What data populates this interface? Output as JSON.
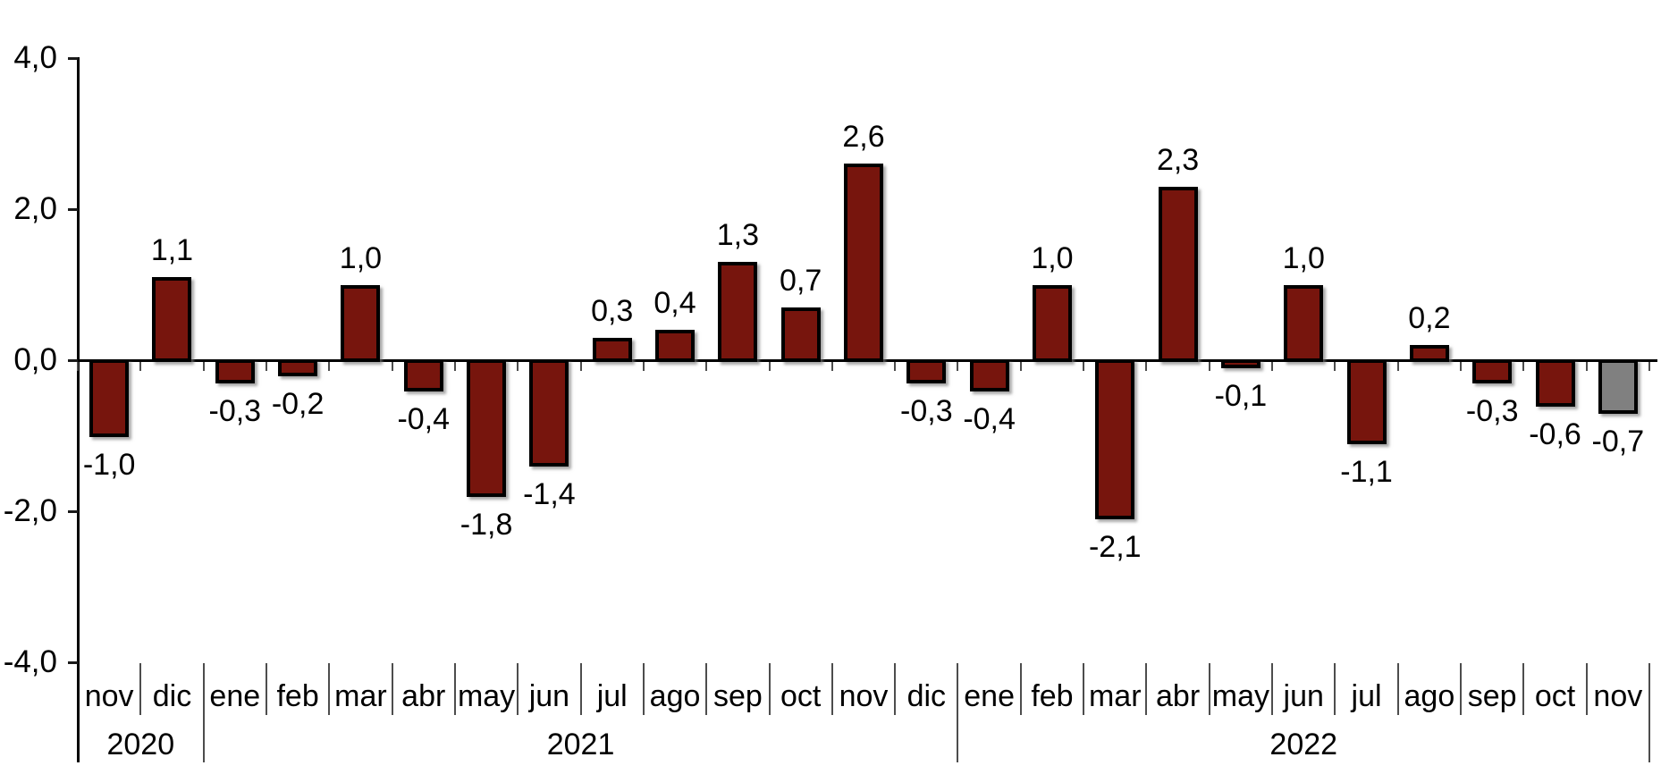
{
  "chart_data": {
    "type": "bar",
    "title": "",
    "background": "#ffffff",
    "grid": false,
    "legend": null,
    "ylim": [
      -4.0,
      4.0
    ],
    "y_ticks": [
      {
        "value": 4.0,
        "label": "4,0"
      },
      {
        "value": 2.0,
        "label": "2,0"
      },
      {
        "value": 0.0,
        "label": "0,0"
      },
      {
        "value": -2.0,
        "label": "-2,0"
      },
      {
        "value": -4.0,
        "label": "-4,0"
      }
    ],
    "colors": {
      "bar_fill": "#77150d",
      "bar_fill_highlight": "#808080",
      "bar_border": "#000000",
      "axis": "#000000",
      "separator": "#4d4d4d",
      "text": "#000000"
    },
    "year_groups": [
      {
        "label": "2020",
        "start": 0,
        "count": 2
      },
      {
        "label": "2021",
        "start": 2,
        "count": 12
      },
      {
        "label": "2022",
        "start": 14,
        "count": 11
      }
    ],
    "points": [
      {
        "month": "nov",
        "year": "2020",
        "value": -1.0,
        "label": "-1,0",
        "highlighted": false
      },
      {
        "month": "dic",
        "year": "2020",
        "value": 1.1,
        "label": "1,1",
        "highlighted": false
      },
      {
        "month": "ene",
        "year": "2021",
        "value": -0.3,
        "label": "-0,3",
        "highlighted": false
      },
      {
        "month": "feb",
        "year": "2021",
        "value": -0.2,
        "label": "-0,2",
        "highlighted": false
      },
      {
        "month": "mar",
        "year": "2021",
        "value": 1.0,
        "label": "1,0",
        "highlighted": false
      },
      {
        "month": "abr",
        "year": "2021",
        "value": -0.4,
        "label": "-0,4",
        "highlighted": false
      },
      {
        "month": "may",
        "year": "2021",
        "value": -1.8,
        "label": "-1,8",
        "highlighted": false
      },
      {
        "month": "jun",
        "year": "2021",
        "value": -1.4,
        "label": "-1,4",
        "highlighted": false
      },
      {
        "month": "jul",
        "year": "2021",
        "value": 0.3,
        "label": "0,3",
        "highlighted": false
      },
      {
        "month": "ago",
        "year": "2021",
        "value": 0.4,
        "label": "0,4",
        "highlighted": false
      },
      {
        "month": "sep",
        "year": "2021",
        "value": 1.3,
        "label": "1,3",
        "highlighted": false
      },
      {
        "month": "oct",
        "year": "2021",
        "value": 0.7,
        "label": "0,7",
        "highlighted": false
      },
      {
        "month": "nov",
        "year": "2021",
        "value": 2.6,
        "label": "2,6",
        "highlighted": false
      },
      {
        "month": "dic",
        "year": "2021",
        "value": -0.3,
        "label": "-0,3",
        "highlighted": false
      },
      {
        "month": "ene",
        "year": "2022",
        "value": -0.4,
        "label": "-0,4",
        "highlighted": false
      },
      {
        "month": "feb",
        "year": "2022",
        "value": 1.0,
        "label": "1,0",
        "highlighted": false
      },
      {
        "month": "mar",
        "year": "2022",
        "value": -2.1,
        "label": "-2,1",
        "highlighted": false
      },
      {
        "month": "abr",
        "year": "2022",
        "value": 2.3,
        "label": "2,3",
        "highlighted": false
      },
      {
        "month": "may",
        "year": "2022",
        "value": -0.1,
        "label": "-0,1",
        "highlighted": false
      },
      {
        "month": "jun",
        "year": "2022",
        "value": 1.0,
        "label": "1,0",
        "highlighted": false
      },
      {
        "month": "jul",
        "year": "2022",
        "value": -1.1,
        "label": "-1,1",
        "highlighted": false
      },
      {
        "month": "ago",
        "year": "2022",
        "value": 0.2,
        "label": "0,2",
        "highlighted": false
      },
      {
        "month": "sep",
        "year": "2022",
        "value": -0.3,
        "label": "-0,3",
        "highlighted": false
      },
      {
        "month": "oct",
        "year": "2022",
        "value": -0.6,
        "label": "-0,6",
        "highlighted": false
      },
      {
        "month": "nov",
        "year": "2022",
        "value": -0.7,
        "label": "-0,7",
        "highlighted": true
      }
    ]
  }
}
